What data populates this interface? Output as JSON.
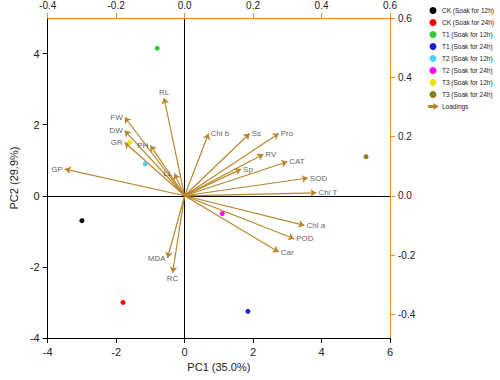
{
  "chart_data": {
    "type": "biplot",
    "x_label": "PC1 (35.0%)",
    "y_label": "PC2 (29.9%)",
    "xlim": [
      -4,
      6
    ],
    "xticks": [
      -4,
      -2,
      0,
      2,
      4,
      6
    ],
    "ylim": [
      -4,
      5
    ],
    "yticks": [
      -4,
      -2,
      0,
      2,
      4
    ],
    "x2lim": [
      -0.4,
      0.6
    ],
    "x2ticks": [
      -0.4,
      -0.2,
      {
        "value": 0,
        "label": "0.0"
      },
      0.2,
      0.4,
      0.6
    ],
    "y2lim": [
      -0.48,
      0.6
    ],
    "y2ticks": [
      -0.4,
      -0.2,
      {
        "value": 0,
        "label": "0.0"
      },
      0.2,
      0.4,
      0.6
    ],
    "grid": false,
    "legend": "right",
    "series": [
      {
        "name": "CK (Soak for 12h)",
        "type": "scatter",
        "marker": "circle",
        "color": "#000000",
        "x": [
          -3.0
        ],
        "y": [
          -0.7
        ]
      },
      {
        "name": "CK (Soak for 24h)",
        "type": "scatter",
        "marker": "circle",
        "color": "#ff0000",
        "x": [
          -1.8
        ],
        "y": [
          -3.0
        ]
      },
      {
        "name": "T1 (Soak for 12h)",
        "type": "scatter",
        "marker": "circle",
        "color": "#33cc33",
        "x": [
          -0.8
        ],
        "y": [
          4.15
        ]
      },
      {
        "name": "T1 (Soak for 24h)",
        "type": "scatter",
        "marker": "circle",
        "color": "#1f1fd6",
        "x": [
          1.85
        ],
        "y": [
          -3.25
        ]
      },
      {
        "name": "T2 (Soak for 12h)",
        "type": "scatter",
        "marker": "circle",
        "color": "#4dd2ff",
        "x": [
          -1.15
        ],
        "y": [
          0.9
        ]
      },
      {
        "name": "T2 (Soak for 24h)",
        "type": "scatter",
        "marker": "circle",
        "color": "#ff00ff",
        "x": [
          1.1
        ],
        "y": [
          -0.5
        ]
      },
      {
        "name": "T3 (Soak for 12h)",
        "type": "scatter",
        "marker": "circle",
        "color": "#e6e600",
        "x": [
          -1.6
        ],
        "y": [
          1.5
        ]
      },
      {
        "name": "T3 (Soak for 24h)",
        "type": "scatter",
        "marker": "circle",
        "color": "#8b7d1a",
        "x": [
          5.3
        ],
        "y": [
          1.1
        ]
      },
      {
        "name": "Loadings",
        "type": "arrow",
        "axis": "y2",
        "color": "#b8862b",
        "labels": [
          "GP",
          "GR",
          "DW",
          "FW",
          "PH",
          "RL",
          "LL",
          "Chl b",
          "Ss",
          "Pro",
          "RV",
          "Sp",
          "CAT",
          "SOD",
          "Chl T",
          "Chl a",
          "POD",
          "Car",
          "MDA",
          "RC"
        ],
        "x": [
          -0.35,
          -0.175,
          -0.175,
          -0.175,
          -0.1,
          -0.06,
          -0.03,
          0.07,
          0.19,
          0.275,
          0.23,
          0.165,
          0.3,
          0.36,
          0.385,
          0.35,
          0.32,
          0.275,
          -0.05,
          -0.035
        ],
        "y": [
          0.09,
          0.18,
          0.22,
          0.265,
          0.17,
          0.33,
          0.075,
          0.21,
          0.21,
          0.21,
          0.14,
          0.09,
          0.115,
          0.06,
          0.01,
          -0.1,
          -0.145,
          -0.19,
          -0.21,
          -0.26
        ]
      }
    ]
  }
}
